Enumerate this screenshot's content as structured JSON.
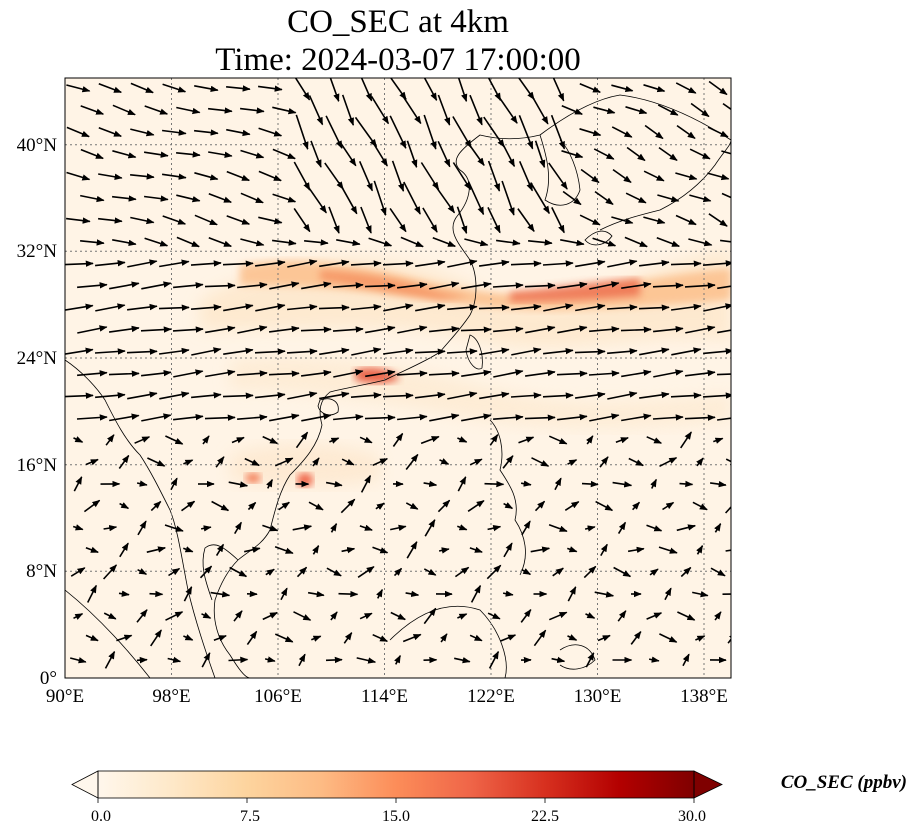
{
  "figure": {
    "title_line1": "CO_SEC at 4km",
    "title_line2": "Time: 2024-03-07 17:00:00"
  },
  "map": {
    "lon_range": [
      90,
      140
    ],
    "lat_range": [
      0,
      45
    ],
    "lon_ticks": [
      {
        "value": 90,
        "label": "90°E"
      },
      {
        "value": 98,
        "label": "98°E"
      },
      {
        "value": 106,
        "label": "106°E"
      },
      {
        "value": 114,
        "label": "114°E"
      },
      {
        "value": 122,
        "label": "122°E"
      },
      {
        "value": 130,
        "label": "130°E"
      },
      {
        "value": 138,
        "label": "138°E"
      }
    ],
    "lat_ticks": [
      {
        "value": 0,
        "label": "0°"
      },
      {
        "value": 8,
        "label": "8°N"
      },
      {
        "value": 16,
        "label": "16°N"
      },
      {
        "value": 24,
        "label": "24°N"
      },
      {
        "value": 32,
        "label": "32°N"
      },
      {
        "value": 40,
        "label": "40°N"
      }
    ],
    "gridlines": true,
    "wind_vectors": true
  },
  "colorbar": {
    "label": "CO_SEC (ppbv)",
    "min": 0.0,
    "max": 30.0,
    "ticks": [
      "0.0",
      "7.5",
      "15.0",
      "22.5",
      "30.0"
    ],
    "colormap": "OrRd",
    "colors": [
      "#fff7ec",
      "#fee8c8",
      "#fdd49e",
      "#fdbb84",
      "#fc8d59",
      "#ef6548",
      "#d7301f",
      "#b30000",
      "#7f0000"
    ],
    "extend": "both"
  }
}
